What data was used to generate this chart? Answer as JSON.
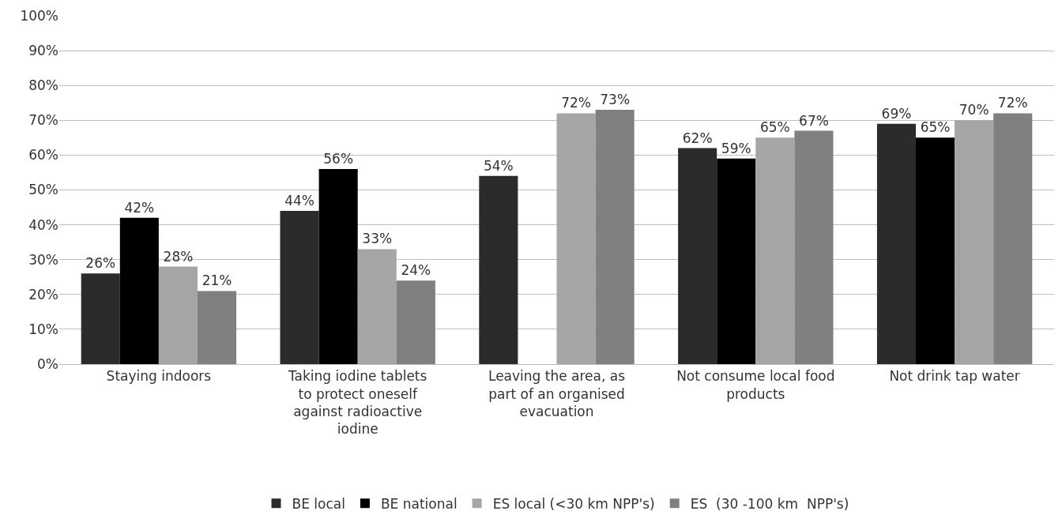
{
  "chart_data": {
    "type": "bar",
    "categories": [
      "Staying indoors",
      "Taking iodine tablets to protect oneself against radioactive iodine",
      "Leaving the area, as part of an organised evacuation",
      "Not consume local food products",
      "Not drink tap water"
    ],
    "series": [
      {
        "name": "BE local",
        "color": "#2b2b2b",
        "values": [
          26,
          44,
          54,
          62,
          69
        ],
        "value_labels": [
          "26%",
          "44%",
          "54%",
          "62%",
          "69%"
        ]
      },
      {
        "name": "BE national",
        "color": "#000000",
        "values": [
          42,
          56,
          null,
          59,
          65
        ],
        "value_labels": [
          "42%",
          "56%",
          null,
          "59%",
          "65%"
        ]
      },
      {
        "name": "ES local (<30 km NPP's)",
        "color": "#a6a6a6",
        "values": [
          28,
          33,
          72,
          65,
          70
        ],
        "value_labels": [
          "28%",
          "33%",
          "72%",
          "65%",
          "70%"
        ]
      },
      {
        "name": "ES  (30 -100 km  NPP's)",
        "color": "#808080",
        "values": [
          21,
          24,
          73,
          67,
          72
        ],
        "value_labels": [
          "21%",
          "24%",
          "73%",
          "67%",
          "72%"
        ]
      }
    ],
    "ylim": [
      0,
      100
    ],
    "yticks": [
      {
        "value": 0,
        "label": "0%"
      },
      {
        "value": 10,
        "label": "10%"
      },
      {
        "value": 20,
        "label": "20%"
      },
      {
        "value": 30,
        "label": "30%"
      },
      {
        "value": 40,
        "label": "40%"
      },
      {
        "value": 50,
        "label": "50%"
      },
      {
        "value": 60,
        "label": "60%"
      },
      {
        "value": 70,
        "label": "70%"
      },
      {
        "value": 80,
        "label": "80%"
      },
      {
        "value": 90,
        "label": "90%"
      },
      {
        "value": 100,
        "label": "100%"
      }
    ],
    "grid": "y",
    "legend": "bottom"
  }
}
